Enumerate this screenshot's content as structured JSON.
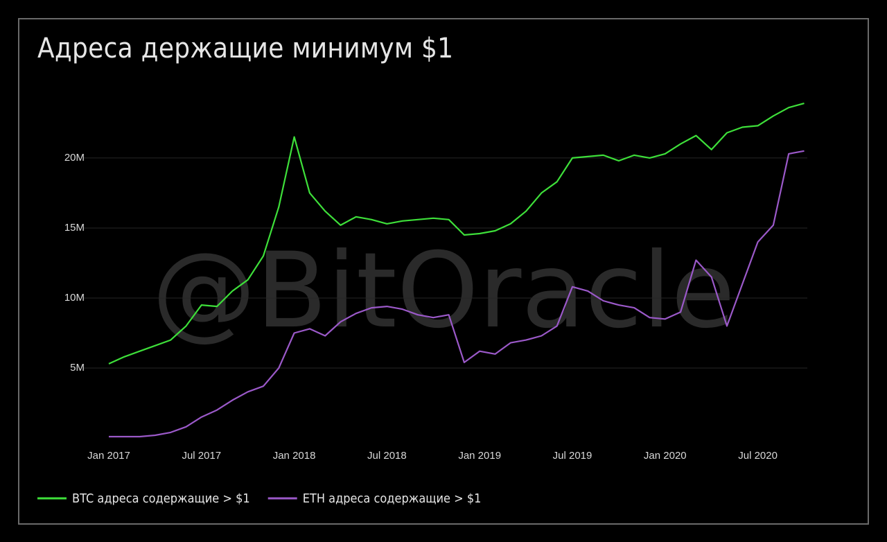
{
  "chart_data": {
    "type": "line",
    "title": "Адреса держащие минимум $1",
    "watermark": "@BitOracle",
    "x": [
      "2017-01",
      "2017-02",
      "2017-03",
      "2017-04",
      "2017-05",
      "2017-06",
      "2017-07",
      "2017-08",
      "2017-09",
      "2017-10",
      "2017-11",
      "2017-12",
      "2018-01",
      "2018-02",
      "2018-03",
      "2018-04",
      "2018-05",
      "2018-06",
      "2018-07",
      "2018-08",
      "2018-09",
      "2018-10",
      "2018-11",
      "2018-12",
      "2019-01",
      "2019-02",
      "2019-03",
      "2019-04",
      "2019-05",
      "2019-06",
      "2019-07",
      "2019-08",
      "2019-09",
      "2019-10",
      "2019-11",
      "2019-12",
      "2020-01",
      "2020-02",
      "2020-03",
      "2020-04",
      "2020-05",
      "2020-06",
      "2020-07",
      "2020-08",
      "2020-09",
      "2020-10"
    ],
    "series": [
      {
        "name": "BTC адреса содержащие > $1",
        "color": "#3ee03a",
        "values": [
          5.3,
          5.8,
          6.2,
          6.6,
          7.0,
          8.0,
          9.5,
          9.4,
          10.5,
          11.3,
          13.0,
          16.5,
          21.5,
          17.5,
          16.2,
          15.2,
          15.8,
          15.6,
          15.3,
          15.5,
          15.6,
          15.7,
          15.6,
          14.5,
          14.6,
          14.8,
          15.3,
          16.2,
          17.5,
          18.3,
          20.0,
          20.1,
          20.2,
          19.8,
          20.2,
          20.0,
          20.3,
          21.0,
          21.6,
          20.6,
          21.8,
          22.2,
          22.3,
          23.0,
          23.6,
          23.9
        ]
      },
      {
        "name": "ETH адреса содержащие > $1",
        "color": "#9b59c9",
        "values": [
          0.1,
          0.1,
          0.1,
          0.2,
          0.4,
          0.8,
          1.5,
          2.0,
          2.7,
          3.3,
          3.7,
          5.0,
          7.5,
          7.8,
          7.3,
          8.3,
          8.9,
          9.3,
          9.4,
          9.2,
          8.8,
          8.6,
          8.8,
          5.4,
          6.2,
          6.0,
          6.8,
          7.0,
          7.3,
          8.0,
          10.8,
          10.5,
          9.8,
          9.5,
          9.3,
          8.6,
          8.5,
          9.0,
          12.7,
          11.5,
          8.0,
          11.0,
          14.0,
          15.2,
          20.3,
          20.5
        ]
      }
    ],
    "xticks": [
      {
        "value": "2017-01",
        "label": "Jan 2017"
      },
      {
        "value": "2017-07",
        "label": "Jul 2017"
      },
      {
        "value": "2018-01",
        "label": "Jan 2018"
      },
      {
        "value": "2018-07",
        "label": "Jul 2018"
      },
      {
        "value": "2019-01",
        "label": "Jan 2019"
      },
      {
        "value": "2019-07",
        "label": "Jul 2019"
      },
      {
        "value": "2020-01",
        "label": "Jan 2020"
      },
      {
        "value": "2020-07",
        "label": "Jul 2020"
      }
    ],
    "ylim": [
      0,
      24.5
    ],
    "yticks": [
      {
        "value": 5,
        "label": "5M"
      },
      {
        "value": 10,
        "label": "10M"
      },
      {
        "value": 15,
        "label": "15M"
      },
      {
        "value": 20,
        "label": "20M"
      }
    ],
    "grid": true,
    "legend": "bottom-left"
  }
}
